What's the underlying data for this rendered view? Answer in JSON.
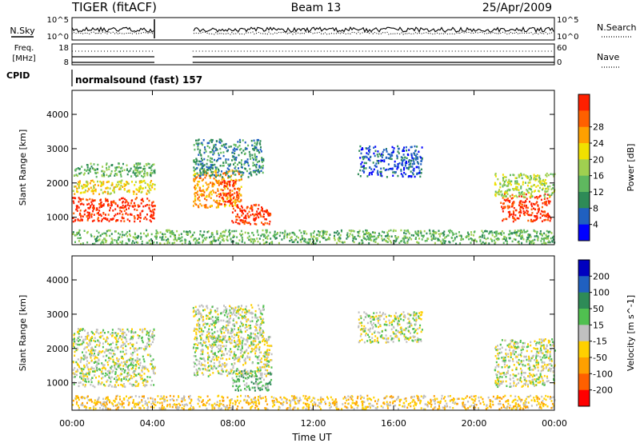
{
  "header": {
    "title": "TIGER (fitACF)",
    "beam": "Beam 13",
    "date": "25/Apr/2009"
  },
  "noise": {
    "left_label": "N.Sky",
    "left_ticks": [
      "10^5",
      "10^0"
    ],
    "right_label": "N.Search",
    "right_ticks": [
      "10^5",
      "10^0"
    ]
  },
  "freq": {
    "left_label_1": "Freq.",
    "left_label_2": "[MHz]",
    "left_ticks": [
      "18",
      "8"
    ],
    "right_label": "Nave",
    "right_ticks": [
      "60",
      "0"
    ]
  },
  "cpid": {
    "label": "CPID",
    "program": "normalsound (fast) 157"
  },
  "colors": {
    "power_scale": [
      "#0000ff",
      "#2060c0",
      "#2e8b57",
      "#5fb85f",
      "#a0d050",
      "#f0e000",
      "#ffa000",
      "#ff6000",
      "#ff2000"
    ],
    "velocity_scale": [
      "#0000c0",
      "#2060c0",
      "#2e8b57",
      "#50c050",
      "#c0c0c0",
      "#ffd000",
      "#ffa000",
      "#ff6000",
      "#ff0000"
    ]
  },
  "chart_data": [
    {
      "type": "heatmap",
      "name": "power",
      "xlabel": "",
      "ylabel": "Slant Range [km]",
      "x_ticks": [
        "00:00",
        "04:00",
        "08:00",
        "12:00",
        "16:00",
        "20:00",
        "00:00"
      ],
      "y_ticks": [
        1000,
        2000,
        3000,
        4000
      ],
      "ylim": [
        200,
        4700
      ],
      "colorbar": {
        "label": "Power [dB]",
        "ticks": [
          "4",
          "8",
          "12",
          "16",
          "20",
          "24",
          "28"
        ]
      },
      "data_gap_hours": [
        4.1,
        6.0
      ],
      "regions": [
        {
          "t": [
            0.0,
            4.1
          ],
          "r": [
            900,
            1600
          ],
          "level": 8
        },
        {
          "t": [
            0.0,
            4.1
          ],
          "r": [
            1700,
            2100
          ],
          "level": 5
        },
        {
          "t": [
            0.0,
            4.1
          ],
          "r": [
            2200,
            2600
          ],
          "level": 3
        },
        {
          "t": [
            6.0,
            8.4
          ],
          "r": [
            1300,
            2400
          ],
          "level": 6
        },
        {
          "t": [
            7.3,
            8.2
          ],
          "r": [
            1400,
            2100
          ],
          "level": 8
        },
        {
          "t": [
            7.9,
            9.9
          ],
          "r": [
            800,
            1400
          ],
          "level": 8
        },
        {
          "t": [
            6.0,
            9.5
          ],
          "r": [
            2200,
            3300
          ],
          "level": 2
        },
        {
          "t": [
            14.2,
            17.4
          ],
          "r": [
            2200,
            3100
          ],
          "level": 1
        },
        {
          "t": [
            21.3,
            23.8
          ],
          "r": [
            900,
            1700
          ],
          "level": 8
        },
        {
          "t": [
            21.0,
            24.0
          ],
          "r": [
            1600,
            2300
          ],
          "level": 4
        },
        {
          "t": [
            0.0,
            24.0
          ],
          "r": [
            250,
            650
          ],
          "level": 3
        }
      ]
    },
    {
      "type": "heatmap",
      "name": "velocity",
      "xlabel": "Time UT",
      "ylabel": "Slant Range [km]",
      "x_ticks": [
        "00:00",
        "04:00",
        "08:00",
        "12:00",
        "16:00",
        "20:00",
        "00:00"
      ],
      "y_ticks": [
        1000,
        2000,
        3000,
        4000
      ],
      "ylim": [
        200,
        4700
      ],
      "colorbar": {
        "label": "Velocity [m s^-1]",
        "ticks": [
          "200",
          "100",
          "50",
          "15",
          "-15",
          "-50",
          "-100",
          "-200"
        ]
      },
      "data_gap_hours": [
        4.1,
        6.0
      ],
      "regions": [
        {
          "t": [
            0.0,
            4.1
          ],
          "r": [
            900,
            2600
          ],
          "level": 4
        },
        {
          "t": [
            6.0,
            9.9
          ],
          "r": [
            1200,
            2400
          ],
          "level": 4
        },
        {
          "t": [
            7.9,
            9.9
          ],
          "r": [
            800,
            1400
          ],
          "level": 3
        },
        {
          "t": [
            6.0,
            9.5
          ],
          "r": [
            2200,
            3300
          ],
          "level": 4
        },
        {
          "t": [
            14.2,
            17.4
          ],
          "r": [
            2200,
            3100
          ],
          "level": 4
        },
        {
          "t": [
            21.0,
            24.0
          ],
          "r": [
            900,
            2300
          ],
          "level": 4
        },
        {
          "t": [
            0.0,
            24.0
          ],
          "r": [
            250,
            650
          ],
          "level": 5
        }
      ]
    }
  ]
}
